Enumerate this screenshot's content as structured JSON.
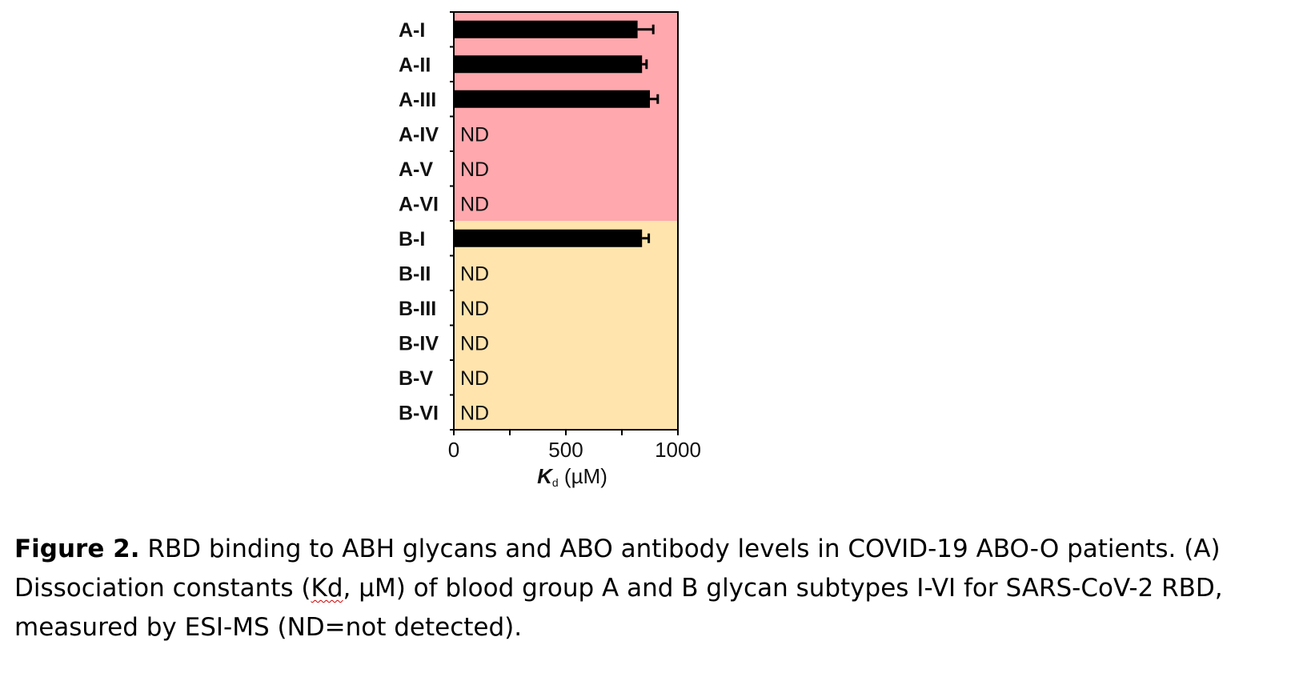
{
  "chart_data": {
    "type": "bar",
    "orientation": "horizontal",
    "categories": [
      "A-I",
      "A-II",
      "A-III",
      "A-IV",
      "A-V",
      "A-VI",
      "B-I",
      "B-II",
      "B-III",
      "B-IV",
      "B-V",
      "B-VI"
    ],
    "values": [
      820,
      840,
      875,
      null,
      null,
      null,
      840,
      null,
      null,
      null,
      null,
      null
    ],
    "errors": [
      70,
      20,
      35,
      null,
      null,
      null,
      30,
      null,
      null,
      null,
      null,
      null
    ],
    "nd_text": "ND",
    "groups": [
      {
        "categories": [
          "A-I",
          "A-II",
          "A-III",
          "A-IV",
          "A-V",
          "A-VI"
        ],
        "color": "#ffa8ad"
      },
      {
        "categories": [
          "B-I",
          "B-II",
          "B-III",
          "B-IV",
          "B-V",
          "B-VI"
        ],
        "color": "#ffe4ad"
      }
    ],
    "bar_color": "#000000",
    "xlim": [
      0,
      1000
    ],
    "xticks": [
      0,
      500,
      1000
    ],
    "xtick_labels": [
      "0",
      "500",
      "1000"
    ],
    "xlabel_symbol": "K",
    "xlabel_subscript": "d",
    "xlabel_unit": " (µM)",
    "grid": false,
    "legend": "none"
  },
  "caption": {
    "label": "Figure 2.",
    "text_before": " RBD binding to ABH glycans and ABO antibody levels in COVID-19 ABO-O patients. (A) Dissociation constants (",
    "flagged_word": "Kd",
    "text_after": ", µM) of blood group A and B glycan subtypes I-VI for SARS-CoV-2 RBD, measured by ESI-MS (ND=not detected)."
  }
}
